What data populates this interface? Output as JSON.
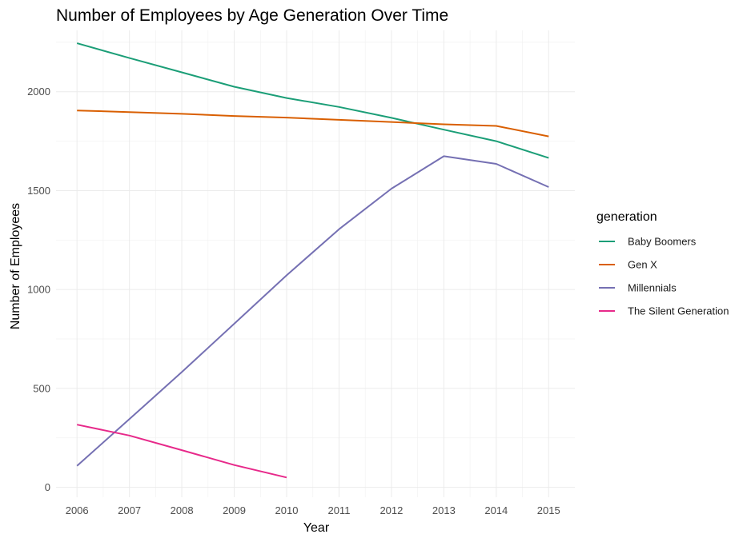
{
  "chart_data": {
    "type": "line",
    "title": "Number of Employees by Age Generation Over Time",
    "xlabel": "Year",
    "ylabel": "Number of Employees",
    "x": [
      2006,
      2007,
      2008,
      2009,
      2010,
      2011,
      2012,
      2013,
      2014,
      2015
    ],
    "xlim": [
      2005.6,
      2015.5
    ],
    "ylim": [
      -50,
      2310
    ],
    "yticks": [
      0,
      500,
      1000,
      1500,
      2000
    ],
    "grid": true,
    "legend": {
      "title": "generation",
      "position": "right"
    },
    "series": [
      {
        "name": "Baby Boomers",
        "color": "#1b9e77",
        "values": [
          2245,
          2170,
          2098,
          2025,
          1968,
          1923,
          1868,
          1808,
          1750,
          1665
        ]
      },
      {
        "name": "Gen X",
        "color": "#d95f02",
        "values": [
          1905,
          1897,
          1888,
          1877,
          1869,
          1858,
          1847,
          1835,
          1827,
          1774
        ]
      },
      {
        "name": "Millennials",
        "color": "#7570b3",
        "values": [
          109,
          345,
          583,
          827,
          1072,
          1305,
          1510,
          1674,
          1635,
          1518
        ]
      },
      {
        "name": "The Silent Generation",
        "color": "#e7298a",
        "values": [
          317,
          262,
          188,
          113,
          50,
          null,
          null,
          null,
          null,
          null
        ]
      }
    ]
  }
}
